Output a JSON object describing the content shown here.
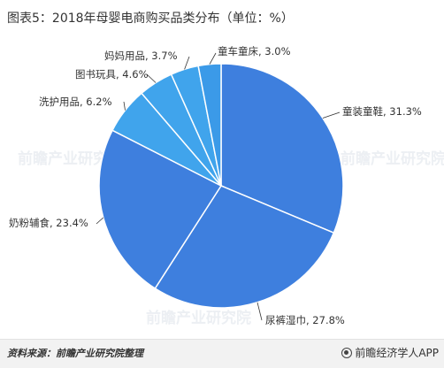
{
  "title": "图表5：2018年母婴电商购买品类分布（单位：%）",
  "footer": {
    "source": "资料来源：前瞻产业研究院整理",
    "brand": "前瞻经济学人APP"
  },
  "watermark": "前瞻产业研究院",
  "colors": {
    "slice_fill": [
      "#3e7fde",
      "#3e7fde",
      "#3e7fde",
      "#40a4ec",
      "#40a4ec",
      "#40a4ec",
      "#3b9ae8",
      "#1d4f94"
    ],
    "slice_stroke": "#ffffff",
    "leader": "#333333"
  },
  "chart_data": {
    "type": "pie",
    "unit": "%",
    "slices": [
      {
        "label": "童装童鞋",
        "value": 31.3,
        "text": "童装童鞋, 31.3%"
      },
      {
        "label": "尿裤湿巾",
        "value": 27.8,
        "text": "尿裤湿巾, 27.8%"
      },
      {
        "label": "奶粉辅食",
        "value": 23.4,
        "text": "奶粉辅食, 23.4%"
      },
      {
        "label": "洗护用品",
        "value": 6.2,
        "text": "洗护用品, 6.2%"
      },
      {
        "label": "图书玩具",
        "value": 4.6,
        "text": "图书玩具, 4.6%"
      },
      {
        "label": "妈妈用品",
        "value": 3.7,
        "text": "妈妈用品, 3.7%"
      },
      {
        "label": "童车童床",
        "value": 3.0,
        "text": "童车童床, 3.0%"
      }
    ]
  }
}
